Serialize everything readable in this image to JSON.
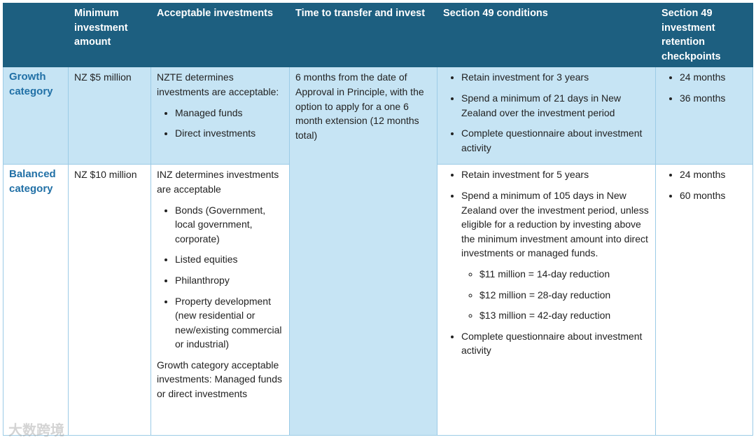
{
  "table": {
    "header": [
      "",
      "Minimum investment amount",
      "Acceptable investments",
      "Time to transfer and invest",
      "Section 49 conditions",
      "Section 49 investment retention checkpoints"
    ],
    "rows": [
      {
        "category": "Growth category",
        "minimum": "NZ $5 million",
        "investments": {
          "intro": "NZTE determines investments are acceptable:",
          "items": [
            "Managed funds",
            "Direct investments"
          ]
        },
        "time": "6 months from the date of Approval in Principle, with the option to apply for a one 6 month extension  (12 months total)",
        "conditions": [
          {
            "text": "Retain investment for 3 years"
          },
          {
            "text": "Spend a minimum of 21 days in New Zealand over the investment period"
          },
          {
            "text": "Complete questionnaire about investment activity"
          }
        ],
        "checkpoints": [
          "24 months",
          "36 months"
        ]
      },
      {
        "category": "Balanced category",
        "minimum": "NZ $10 million",
        "investments": {
          "intro": "INZ determines investments are acceptable",
          "items": [
            "Bonds (Government, local government, corporate)",
            "Listed equities",
            "Philanthropy",
            "Property development (new residential or new/existing commercial or industrial)"
          ],
          "outro": "Growth category acceptable investments: Managed funds or direct investments"
        },
        "conditions": [
          {
            "text": "Retain investment for 5 years"
          },
          {
            "text": "Spend a minimum of 105 days in New Zealand over the investment period, unless eligible for a reduction by investing above the minimum investment amount into direct investments or managed funds.",
            "subitems": [
              "$11 million = 14-day reduction",
              "$12 million = 28-day reduction",
              "$13 million = 42-day reduction"
            ]
          },
          {
            "text": "Complete questionnaire about investment activity"
          }
        ],
        "checkpoints": [
          "24 months",
          "60 months"
        ]
      }
    ]
  },
  "watermark": "大数跨境"
}
